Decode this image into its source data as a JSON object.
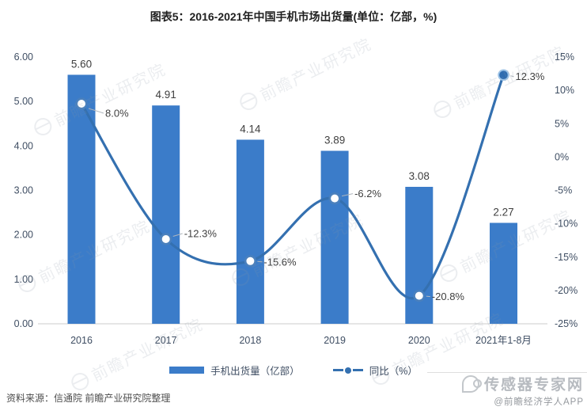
{
  "title": "图表5：2016-2021年中国手机市场出货量(单位：亿部，%)",
  "chart_data": {
    "type": "bar",
    "title": "图表5：2016-2021年中国手机市场出货量(单位：亿部，%)",
    "categories": [
      "2016",
      "2017",
      "2018",
      "2019",
      "2020",
      "2021年1-8月"
    ],
    "series": [
      {
        "name": "手机出货量（亿部）",
        "type": "bar",
        "axis": "left",
        "values": [
          5.6,
          4.91,
          4.14,
          3.89,
          3.08,
          2.27
        ]
      },
      {
        "name": "同比（%）",
        "type": "line",
        "axis": "right",
        "values": [
          8.0,
          -12.3,
          -15.6,
          -6.2,
          -20.8,
          12.3
        ]
      }
    ],
    "value_labels": {
      "bar": [
        "5.60",
        "4.91",
        "4.14",
        "3.89",
        "3.08",
        "2.27"
      ],
      "line": [
        "8.0%",
        "-12.3%",
        "-15.6%",
        "-6.2%",
        "-20.8%",
        "12.3%"
      ]
    },
    "left_axis": {
      "min": 0,
      "max": 6,
      "tick_values": [
        0,
        1,
        2,
        3,
        4,
        5,
        6
      ],
      "ticks": [
        "0.00",
        "1.00",
        "2.00",
        "3.00",
        "4.00",
        "5.00",
        "6.00"
      ]
    },
    "right_axis": {
      "min": -25,
      "max": 15,
      "tick_values": [
        15,
        10,
        5,
        0,
        -5,
        -10,
        -15,
        -20,
        -25
      ],
      "ticks": [
        "15%",
        "10%",
        "5%",
        "0%",
        "-5%",
        "-10%",
        "-15%",
        "-20%",
        "-25%"
      ]
    },
    "grid": false,
    "legend_position": "bottom"
  },
  "legend": {
    "items": [
      {
        "label": "手机出货量（亿部）",
        "swatch": "bar"
      },
      {
        "label": "同比（%）",
        "swatch": "line-dot"
      }
    ]
  },
  "source_note": "资料来源：信通院 前瞻产业研究院整理",
  "watermark": {
    "diagonal_text": "前瞻产业研究院",
    "brand": "传感器专家网",
    "credit": "@前瞻经济学人APP"
  },
  "colors": {
    "bar": "#3B7CC9",
    "line": "#3470B0",
    "marker_ring": "#4A80BD",
    "last_marker_fill": "#2E6CB0",
    "last_marker_ring": "#9DC3E6",
    "axis_text": "#3F4E63",
    "label_text": "#3F3F3F",
    "connector": "#AFB6BD",
    "baseline": "#D6D6D6"
  }
}
